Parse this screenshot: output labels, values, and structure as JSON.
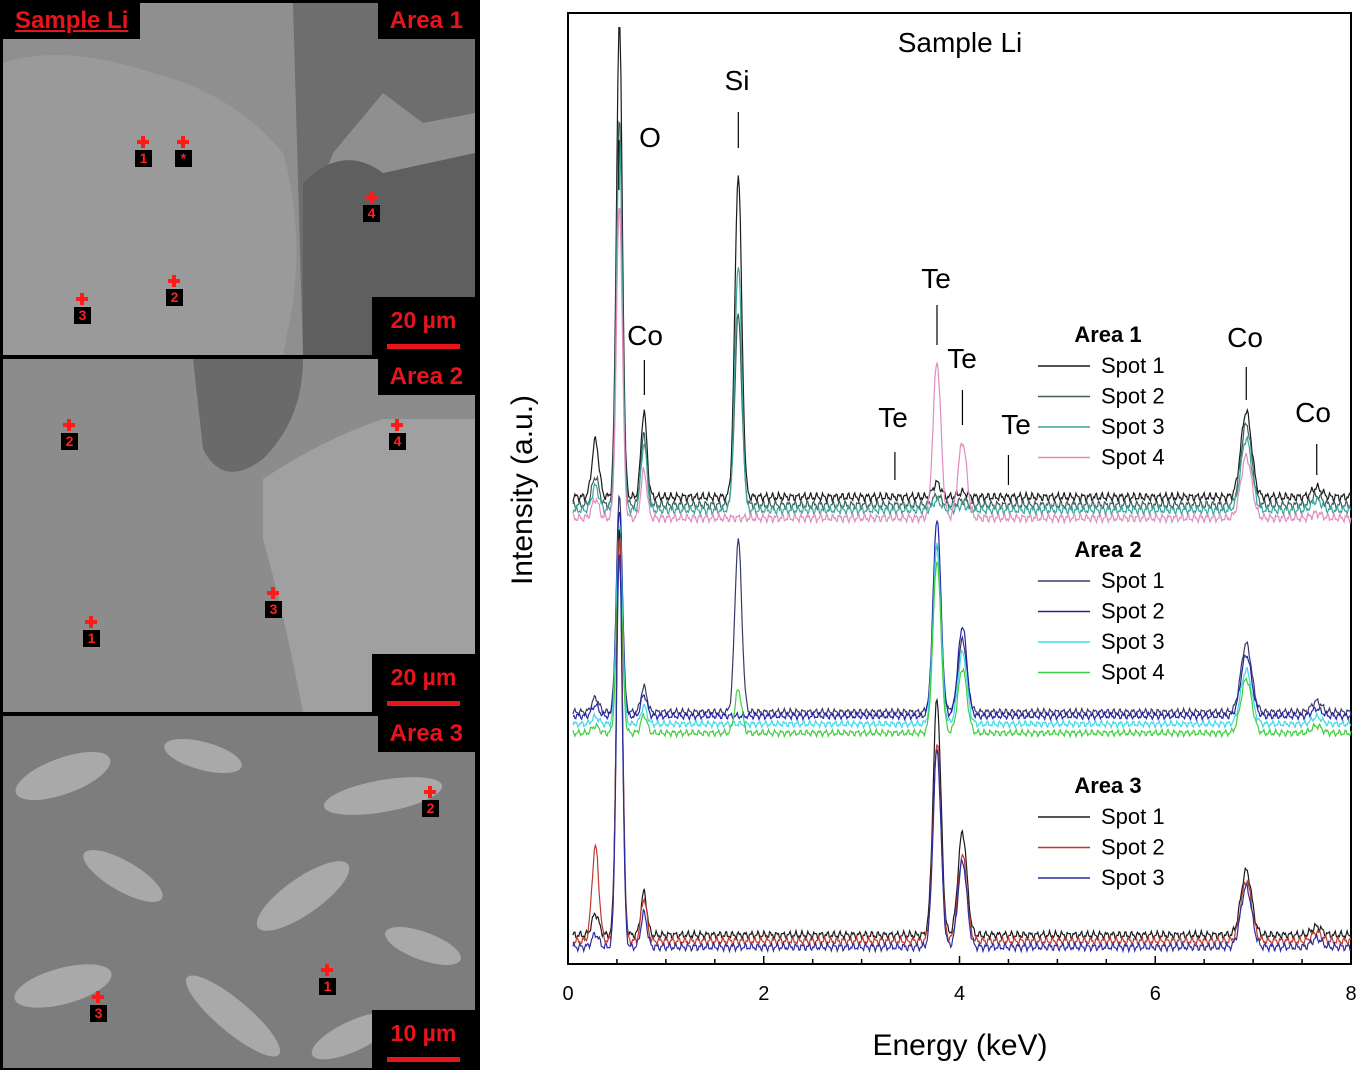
{
  "sem": {
    "sample_label": "Sample Li",
    "areas": [
      {
        "label": "Area 1",
        "scale": "20 µm",
        "spots": [
          "1",
          "*",
          "4",
          "2",
          "3"
        ]
      },
      {
        "label": "Area 2",
        "scale": "20 µm",
        "spots": [
          "2",
          "4",
          "3",
          "1"
        ]
      },
      {
        "label": "Area 3",
        "scale": "10 µm",
        "spots": [
          "2",
          "1",
          "3"
        ]
      }
    ],
    "colors": {
      "marker": "#ff1a1a",
      "tag_text": "#e8141c",
      "tag_bg": "#000000"
    }
  },
  "chart_data": {
    "type": "line",
    "title": "Sample Li",
    "xlabel": "Energy (keV)",
    "ylabel": "Intensity (a.u.)",
    "xlim": [
      0,
      8
    ],
    "xticks": [
      0,
      2,
      4,
      6,
      8
    ],
    "yticks_shown": false,
    "grid": false,
    "peak_labels": [
      {
        "text": "O",
        "energy": 0.52
      },
      {
        "text": "Si",
        "energy": 1.74
      },
      {
        "text": "Co",
        "energy": 0.78
      },
      {
        "text": "Te",
        "energy": 3.77
      },
      {
        "text": "Te",
        "energy": 4.03
      },
      {
        "text": "Te",
        "energy": 3.34
      },
      {
        "text": "Te",
        "energy": 4.5
      },
      {
        "text": "Co",
        "energy": 6.93
      },
      {
        "text": "Co",
        "energy": 7.65
      }
    ],
    "groups": [
      {
        "label": "Area 1",
        "series": [
          {
            "name": "Spot 1",
            "color": "#1a1a1a",
            "peaks": {
              "C": 0.12,
              "O": 1.0,
              "Co_L": 0.18,
              "Si": 0.68,
              "Te_La": 0.03,
              "Te_Lb": 0.01,
              "Co_Ka": 0.18,
              "Co_Kb": 0.02
            }
          },
          {
            "name": "Spot 2",
            "color": "#3a5f5a",
            "peaks": {
              "C": 0.06,
              "O": 0.82,
              "Co_L": 0.15,
              "Si": 0.4,
              "Te_La": 0.02,
              "Te_Lb": 0.01,
              "Co_Ka": 0.17,
              "Co_Kb": 0.02
            }
          },
          {
            "name": "Spot 3",
            "color": "#3aa69a",
            "peaks": {
              "C": 0.05,
              "O": 0.78,
              "Co_L": 0.14,
              "Si": 0.52,
              "Te_La": 0.02,
              "Te_Lb": 0.01,
              "Co_Ka": 0.15,
              "Co_Kb": 0.02
            }
          },
          {
            "name": "Spot 4",
            "color": "#e08cc0",
            "peaks": {
              "C": 0.04,
              "O": 0.66,
              "Co_L": 0.1,
              "Si": 0.0,
              "Te_La": 0.33,
              "Te_Lb": 0.16,
              "Co_Ka": 0.13,
              "Co_Kb": 0.01
            }
          }
        ]
      },
      {
        "label": "Area 2",
        "series": [
          {
            "name": "Spot 1",
            "color": "#3a3a6a",
            "peaks": {
              "C": 0.04,
              "O": 0.6,
              "Co_L": 0.07,
              "Si": 0.48,
              "Te_La": 0.46,
              "Te_Lb": 0.2,
              "Co_Ka": 0.19,
              "Co_Kb": 0.03
            }
          },
          {
            "name": "Spot 2",
            "color": "#2222a8",
            "peaks": {
              "C": 0.03,
              "O": 0.58,
              "Co_L": 0.06,
              "Si": 0.0,
              "Te_La": 0.55,
              "Te_Lb": 0.25,
              "Co_Ka": 0.17,
              "Co_Kb": 0.02
            }
          },
          {
            "name": "Spot 3",
            "color": "#40d8e8",
            "peaks": {
              "C": 0.02,
              "O": 0.55,
              "Co_L": 0.05,
              "Si": 0.0,
              "Te_La": 0.5,
              "Te_Lb": 0.2,
              "Co_Ka": 0.15,
              "Co_Kb": 0.02
            }
          },
          {
            "name": "Spot 4",
            "color": "#3fcf3f",
            "peaks": {
              "C": 0.02,
              "O": 0.48,
              "Co_L": 0.05,
              "Si": 0.12,
              "Te_La": 0.48,
              "Te_Lb": 0.18,
              "Co_Ka": 0.15,
              "Co_Kb": 0.02
            }
          }
        ]
      },
      {
        "label": "Area 3",
        "series": [
          {
            "name": "Spot 1",
            "color": "#1a1a1a",
            "peaks": {
              "C": 0.05,
              "O": 0.95,
              "Co_L": 0.1,
              "Si": 0.0,
              "Te_La": 0.55,
              "Te_Lb": 0.24,
              "Co_Ka": 0.15,
              "Co_Kb": 0.02
            }
          },
          {
            "name": "Spot 2",
            "color": "#c0392b",
            "peaks": {
              "C": 0.22,
              "O": 0.95,
              "Co_L": 0.1,
              "Si": 0.0,
              "Te_La": 0.46,
              "Te_Lb": 0.2,
              "Co_Ka": 0.14,
              "Co_Kb": 0.02
            }
          },
          {
            "name": "Spot 3",
            "color": "#2c2ca0",
            "peaks": {
              "C": 0.03,
              "O": 0.92,
              "Co_L": 0.08,
              "Si": 0.0,
              "Te_La": 0.46,
              "Te_Lb": 0.2,
              "Co_Ka": 0.14,
              "Co_Kb": 0.02
            }
          }
        ]
      }
    ]
  }
}
